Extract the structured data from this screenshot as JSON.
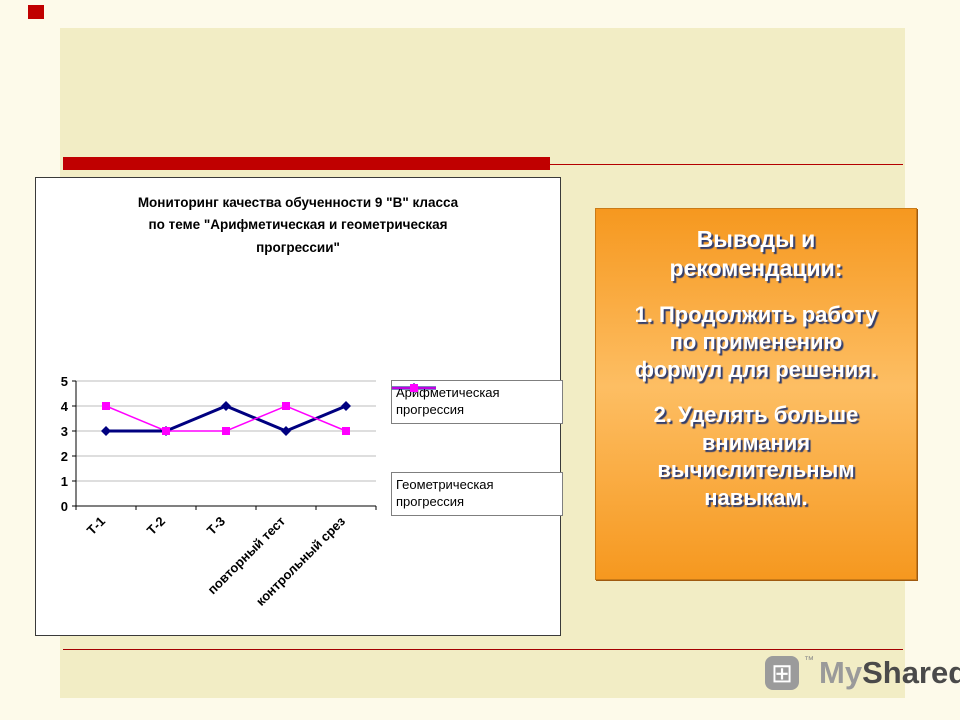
{
  "slide": {
    "conclusions": {
      "title": "Выводы и рекомендации:",
      "items": [
        {
          "number": "1.",
          "text": "Продолжить работу по применению формул для решения."
        },
        {
          "number": "2.",
          "text": "Уделять больше внимания вычислительным навыкам."
        }
      ]
    },
    "watermark": {
      "tm": "™",
      "part1": "My",
      "part2": "Shared"
    }
  },
  "chart_data": {
    "type": "line",
    "title": "Мониторинг качества обученности 9 \"В\" класса по теме \"Арифметическая и геометрическая прогрессии\"",
    "title_lines": [
      "Мониторинг качества обученности 9 \"В\" класса",
      "по теме \"Арифметическая и геометрическая",
      "прогрессии\""
    ],
    "categories": [
      "Т-1",
      "Т-2",
      "Т-3",
      "повторный тест",
      "контрольный срез"
    ],
    "series": [
      {
        "name": "Арифметическая прогрессия",
        "values": [
          3,
          3,
          4,
          3,
          4
        ],
        "color": "#000080",
        "marker": "diamond"
      },
      {
        "name": "Геометрическая прогрессия",
        "values": [
          4,
          3,
          3,
          4,
          3
        ],
        "color": "#FF00FF",
        "marker": "square"
      }
    ],
    "ylim": [
      0,
      5
    ],
    "yticks": [
      0,
      1,
      2,
      3,
      4,
      5
    ],
    "grid": true,
    "legend_position": "right"
  },
  "colors": {
    "accent_red": "#C00000",
    "page_bg": "#FDFAEA",
    "slide_bg": "#F2EDC5",
    "orange_panel_top": "#F6981F",
    "orange_panel_mid": "#FDBE63",
    "orange_panel_border": "#C97B18",
    "text_shadow_navy": "#2F3C6E",
    "series_arithmetic": "#000080",
    "series_geometric": "#FF00FF"
  }
}
